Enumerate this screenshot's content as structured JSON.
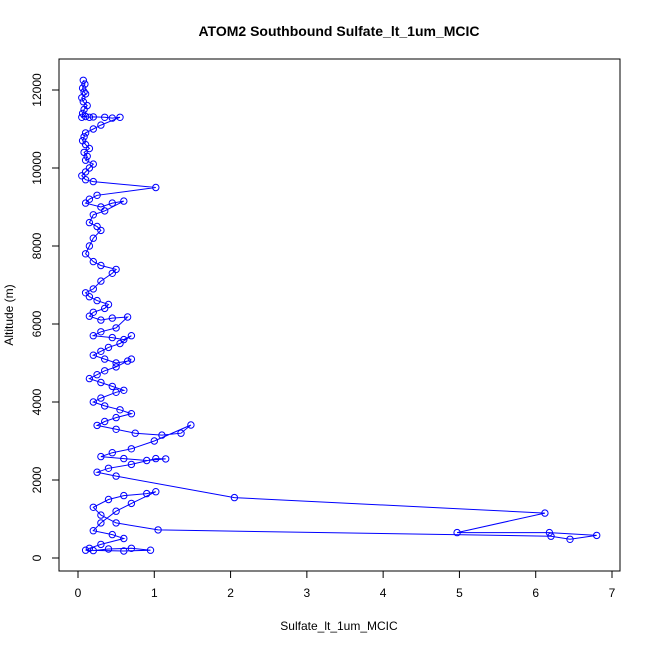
{
  "chart_data": {
    "type": "line",
    "title": "ATOM2 Southbound Sulfate_lt_1um_MCIC",
    "xlabel": "Sulfate_lt_1um_MCIC",
    "ylabel": "Altitude (m)",
    "xlim": [
      0,
      7
    ],
    "ylim": [
      0,
      12300
    ],
    "xticks": [
      0,
      1,
      2,
      3,
      4,
      5,
      6,
      7
    ],
    "yticks": [
      0,
      2000,
      4000,
      6000,
      8000,
      10000,
      12000
    ],
    "grid": false,
    "marker": "open-circle",
    "color": "#0000ff",
    "series": [
      {
        "x": [
          0.07,
          0.09,
          0.06,
          0.08,
          0.1,
          0.05,
          0.07,
          0.12,
          0.08,
          0.06,
          0.05,
          0.1,
          0.15,
          0.2,
          0.35,
          0.45,
          0.55,
          0.3,
          0.2,
          0.1,
          0.08,
          0.06,
          0.1,
          0.15,
          0.08,
          0.12,
          0.1,
          0.2,
          0.15,
          0.1,
          0.05,
          0.1,
          0.2,
          1.02,
          0.25,
          0.15,
          0.1,
          0.3,
          0.45,
          0.6,
          0.35,
          0.2,
          0.15,
          0.25,
          0.3,
          0.2,
          0.15,
          0.1,
          0.2,
          0.3,
          0.5,
          0.45,
          0.3,
          0.2,
          0.1,
          0.15,
          0.25,
          0.4,
          0.35,
          0.2,
          0.15,
          0.3,
          0.45,
          0.65,
          0.5,
          0.3,
          0.2,
          0.45,
          0.6,
          0.7,
          0.55,
          0.4,
          0.3,
          0.2,
          0.35,
          0.5,
          0.65,
          0.7,
          0.5,
          0.35,
          0.25,
          0.15,
          0.3,
          0.45,
          0.6,
          0.5,
          0.3,
          0.2,
          0.35,
          0.55,
          0.7,
          0.5,
          0.35,
          0.25,
          0.5,
          0.75,
          1.1,
          1.35,
          1.48,
          1.0,
          0.7,
          0.45,
          0.3,
          0.6,
          0.9,
          1.15,
          1.02,
          0.7,
          0.4,
          0.25,
          0.5,
          2.05,
          6.12,
          4.97,
          6.18,
          6.8,
          6.45,
          6.2,
          1.05,
          0.5,
          0.3,
          0.2,
          0.4,
          0.6,
          0.9,
          1.02,
          0.7,
          0.5,
          0.3,
          0.2,
          0.45,
          0.6,
          0.3,
          0.15,
          0.1,
          0.6,
          0.95,
          0.7,
          0.4,
          0.2
        ],
        "y": [
          12250,
          12150,
          12050,
          11950,
          11900,
          11800,
          11700,
          11600,
          11500,
          11400,
          11300,
          11320,
          11300,
          11310,
          11300,
          11280,
          11300,
          11100,
          11000,
          10900,
          10800,
          10700,
          10600,
          10500,
          10400,
          10300,
          10200,
          10100,
          10000,
          9900,
          9800,
          9700,
          9650,
          9500,
          9300,
          9200,
          9100,
          9000,
          9100,
          9150,
          8900,
          8800,
          8600,
          8500,
          8400,
          8200,
          8000,
          7800,
          7600,
          7500,
          7400,
          7300,
          7100,
          6900,
          6800,
          6700,
          6600,
          6500,
          6400,
          6300,
          6200,
          6100,
          6150,
          6180,
          5900,
          5800,
          5700,
          5650,
          5600,
          5700,
          5500,
          5400,
          5300,
          5200,
          5100,
          5000,
          5050,
          5100,
          4900,
          4800,
          4700,
          4600,
          4500,
          4400,
          4300,
          4250,
          4100,
          4000,
          3900,
          3800,
          3700,
          3600,
          3500,
          3400,
          3300,
          3200,
          3150,
          3200,
          3410,
          3000,
          2800,
          2700,
          2600,
          2550,
          2500,
          2540,
          2550,
          2400,
          2300,
          2200,
          2100,
          1550,
          1150,
          650,
          650,
          580,
          480,
          560,
          720,
          900,
          1100,
          1300,
          1500,
          1600,
          1650,
          1700,
          1400,
          1200,
          900,
          700,
          600,
          500,
          350,
          250,
          200,
          180,
          200,
          250,
          230,
          190
        ]
      }
    ]
  }
}
